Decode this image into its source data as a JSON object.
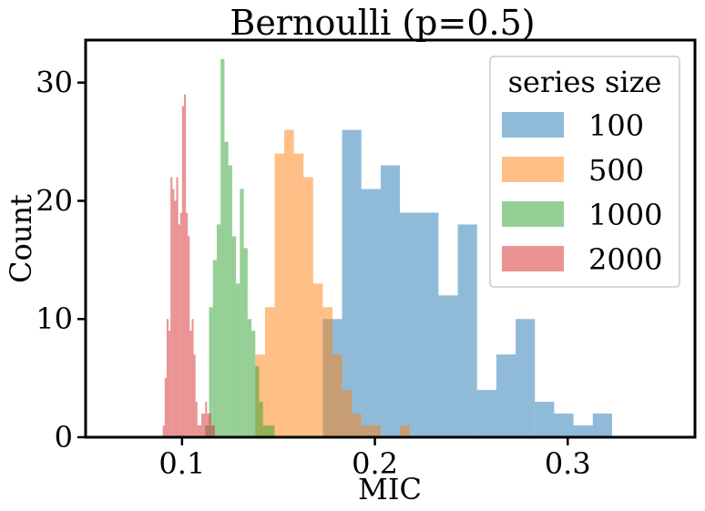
{
  "chart_data": {
    "type": "histogram",
    "title": "Bernoulli (p=0.5)",
    "xlabel": "MIC",
    "ylabel": "Count",
    "xlim": [
      0.05,
      0.366
    ],
    "ylim": [
      0,
      33.6
    ],
    "xticks": [
      0.1,
      0.2,
      0.3
    ],
    "yticks": [
      0,
      10,
      20,
      30
    ],
    "grid": false,
    "legend": {
      "title": "series size",
      "position": "top-right"
    },
    "series": [
      {
        "name": "100",
        "color": "#1f77b4",
        "alpha": 0.5,
        "bins": [
          [
            0.173,
            0.183,
            10
          ],
          [
            0.183,
            0.193,
            26
          ],
          [
            0.193,
            0.203,
            21
          ],
          [
            0.203,
            0.213,
            23
          ],
          [
            0.213,
            0.223,
            19
          ],
          [
            0.223,
            0.233,
            19
          ],
          [
            0.233,
            0.243,
            12
          ],
          [
            0.243,
            0.253,
            18
          ],
          [
            0.253,
            0.263,
            4
          ],
          [
            0.263,
            0.273,
            7
          ],
          [
            0.273,
            0.283,
            10
          ],
          [
            0.283,
            0.293,
            3
          ],
          [
            0.293,
            0.303,
            2
          ],
          [
            0.303,
            0.313,
            1
          ],
          [
            0.313,
            0.323,
            2
          ]
        ]
      },
      {
        "name": "500",
        "color": "#ff7f0e",
        "alpha": 0.5,
        "bins": [
          [
            0.138,
            0.143,
            7
          ],
          [
            0.143,
            0.148,
            11
          ],
          [
            0.148,
            0.153,
            24
          ],
          [
            0.153,
            0.158,
            26
          ],
          [
            0.158,
            0.163,
            24
          ],
          [
            0.163,
            0.168,
            22
          ],
          [
            0.168,
            0.173,
            13
          ],
          [
            0.173,
            0.178,
            11
          ],
          [
            0.178,
            0.183,
            7
          ],
          [
            0.183,
            0.188,
            4
          ],
          [
            0.188,
            0.193,
            2
          ],
          [
            0.193,
            0.198,
            1
          ],
          [
            0.198,
            0.203,
            1
          ],
          [
            0.203,
            0.208,
            0
          ],
          [
            0.208,
            0.213,
            0
          ],
          [
            0.213,
            0.218,
            1
          ]
        ]
      },
      {
        "name": "1000",
        "color": "#2ca02c",
        "alpha": 0.5,
        "bins": [
          [
            0.112,
            0.114,
            1
          ],
          [
            0.114,
            0.116,
            11
          ],
          [
            0.116,
            0.118,
            15
          ],
          [
            0.118,
            0.12,
            18
          ],
          [
            0.12,
            0.122,
            32
          ],
          [
            0.122,
            0.124,
            25
          ],
          [
            0.124,
            0.126,
            23
          ],
          [
            0.126,
            0.128,
            17
          ],
          [
            0.128,
            0.13,
            13
          ],
          [
            0.13,
            0.132,
            21
          ],
          [
            0.132,
            0.134,
            16
          ],
          [
            0.134,
            0.136,
            10
          ],
          [
            0.136,
            0.138,
            9
          ],
          [
            0.138,
            0.14,
            6
          ],
          [
            0.14,
            0.142,
            3
          ],
          [
            0.142,
            0.144,
            1
          ],
          [
            0.144,
            0.146,
            1
          ],
          [
            0.146,
            0.148,
            1
          ]
        ]
      },
      {
        "name": "2000",
        "color": "#d62728",
        "alpha": 0.5,
        "bins": [
          [
            0.09,
            0.091,
            1
          ],
          [
            0.091,
            0.092,
            5
          ],
          [
            0.092,
            0.093,
            10
          ],
          [
            0.093,
            0.094,
            9
          ],
          [
            0.094,
            0.095,
            22
          ],
          [
            0.095,
            0.096,
            21
          ],
          [
            0.096,
            0.097,
            20
          ],
          [
            0.097,
            0.098,
            22
          ],
          [
            0.098,
            0.099,
            18
          ],
          [
            0.099,
            0.1,
            19
          ],
          [
            0.1,
            0.101,
            28
          ],
          [
            0.101,
            0.102,
            29
          ],
          [
            0.102,
            0.103,
            19
          ],
          [
            0.103,
            0.104,
            17
          ],
          [
            0.104,
            0.105,
            9
          ],
          [
            0.105,
            0.106,
            10
          ],
          [
            0.106,
            0.107,
            7
          ],
          [
            0.107,
            0.108,
            3
          ],
          [
            0.108,
            0.109,
            1
          ],
          [
            0.109,
            0.11,
            1
          ],
          [
            0.11,
            0.111,
            2
          ],
          [
            0.111,
            0.112,
            2
          ],
          [
            0.112,
            0.113,
            3
          ],
          [
            0.113,
            0.114,
            2
          ],
          [
            0.114,
            0.115,
            2
          ],
          [
            0.115,
            0.116,
            1
          ],
          [
            0.116,
            0.117,
            1
          ]
        ]
      }
    ]
  }
}
